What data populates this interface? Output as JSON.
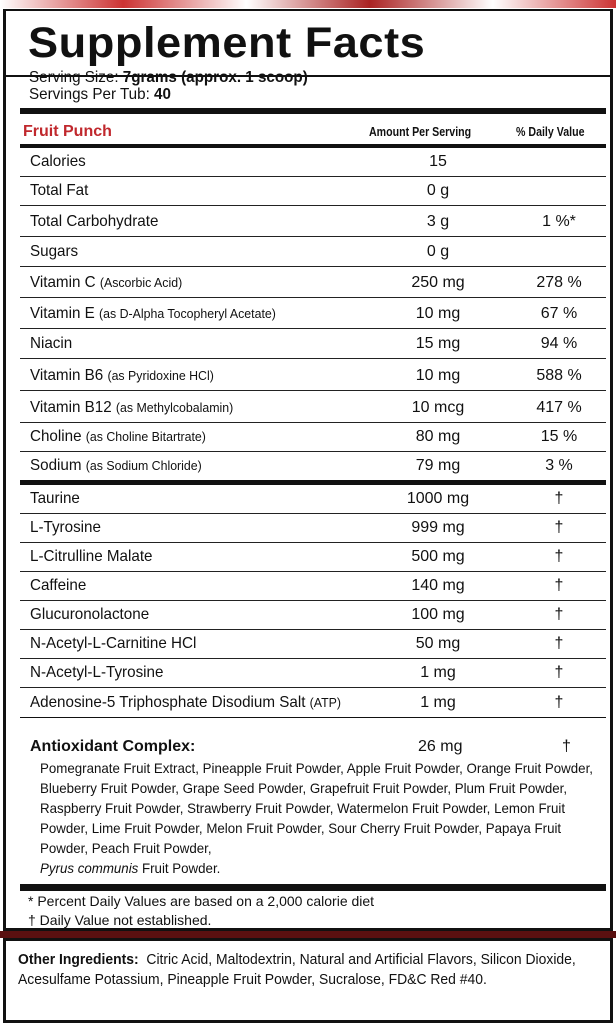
{
  "title": "Supplement Facts",
  "serving_size_label": "Serving Size:",
  "serving_size_value": "7grams (approx. 1 scoop)",
  "servings_label": "Servings Per Tub:",
  "servings_value": "40",
  "flavor": "Fruit Punch",
  "flavor_color": "#c0282d",
  "col_amount": "Amount Per Serving",
  "col_dv": "% Daily Value",
  "nutrients": [
    {
      "name": "Calories",
      "detail": "",
      "amount": "15",
      "dv": ""
    },
    {
      "name": "Total Fat",
      "detail": "",
      "amount": "0 g",
      "dv": ""
    },
    {
      "name": "Total Carbohydrate",
      "detail": "",
      "amount": "3 g",
      "dv": "1 %*"
    },
    {
      "name": "Sugars",
      "detail": "",
      "amount": "0 g",
      "dv": ""
    },
    {
      "name": "Vitamin C",
      "detail": "(Ascorbic Acid)",
      "amount": "250 mg",
      "dv": "278 %"
    },
    {
      "name": "Vitamin E",
      "detail": "(as D-Alpha Tocopheryl Acetate)",
      "amount": "10 mg",
      "dv": "67 %"
    },
    {
      "name": "Niacin",
      "detail": "",
      "amount": "15 mg",
      "dv": "94 %"
    },
    {
      "name": "Vitamin B6",
      "detail": "(as Pyridoxine HCl)",
      "amount": "10 mg",
      "dv": "588 %"
    },
    {
      "name": "Vitamin B12",
      "detail": "(as Methylcobalamin)",
      "amount": "10 mcg",
      "dv": "417 %"
    },
    {
      "name": "Choline",
      "detail": "(as Choline Bitartrate)",
      "amount": "80 mg",
      "dv": "15 %"
    },
    {
      "name": "Sodium",
      "detail": "(as Sodium Chloride)",
      "amount": "79 mg",
      "dv": "3 %"
    }
  ],
  "ingredients": [
    {
      "name": "Taurine",
      "detail": "",
      "amount": "1000 mg",
      "dv": "†"
    },
    {
      "name": "L-Tyrosine",
      "detail": "",
      "amount": "999 mg",
      "dv": "†"
    },
    {
      "name": "L-Citrulline Malate",
      "detail": "",
      "amount": "500 mg",
      "dv": "†"
    },
    {
      "name": "Caffeine",
      "detail": "",
      "amount": "140 mg",
      "dv": "†"
    },
    {
      "name": "Glucuronolactone",
      "detail": "",
      "amount": "100 mg",
      "dv": "†"
    },
    {
      "name": "N-Acetyl-L-Carnitine HCl",
      "detail": "",
      "amount": "50 mg",
      "dv": "†"
    },
    {
      "name": "N-Acetyl-L-Tyrosine",
      "detail": "",
      "amount": "1 mg",
      "dv": "†"
    },
    {
      "name": "Adenosine-5 Triphosphate Disodium Salt",
      "detail": "(ATP)",
      "amount": "1 mg",
      "dv": "†"
    }
  ],
  "antioxidant": {
    "name": "Antioxidant Complex:",
    "amount": "26 mg",
    "dv": "†",
    "list": "Pomegranate Fruit Extract, Pineapple Fruit Powder, Apple Fruit Powder, Orange Fruit Powder, Blueberry Fruit Powder, Grape Seed Powder, Grapefruit Fruit Powder, Plum Fruit Powder, Raspberry Fruit Powder, Strawberry Fruit Powder, Watermelon Fruit Powder, Lemon Fruit Powder, Lime Fruit Powder, Melon Fruit Powder, Sour Cherry Fruit Powder, Papaya Fruit Powder, Peach Fruit Powder,",
    "list_italic": "Pyrus communis",
    "list_end": " Fruit Powder."
  },
  "footnote_1": "* Percent Daily Values are based on a 2,000 calorie diet",
  "footnote_2": "† Daily Value not established.",
  "other_label": "Other Ingredients:",
  "other_value": "Citric Acid, Maltodextrin, Natural and Artificial Flavors, Silicon Dioxide, Acesulfame Potassium, Pineapple Fruit Powder, Sucralose, FD&C Red #40."
}
